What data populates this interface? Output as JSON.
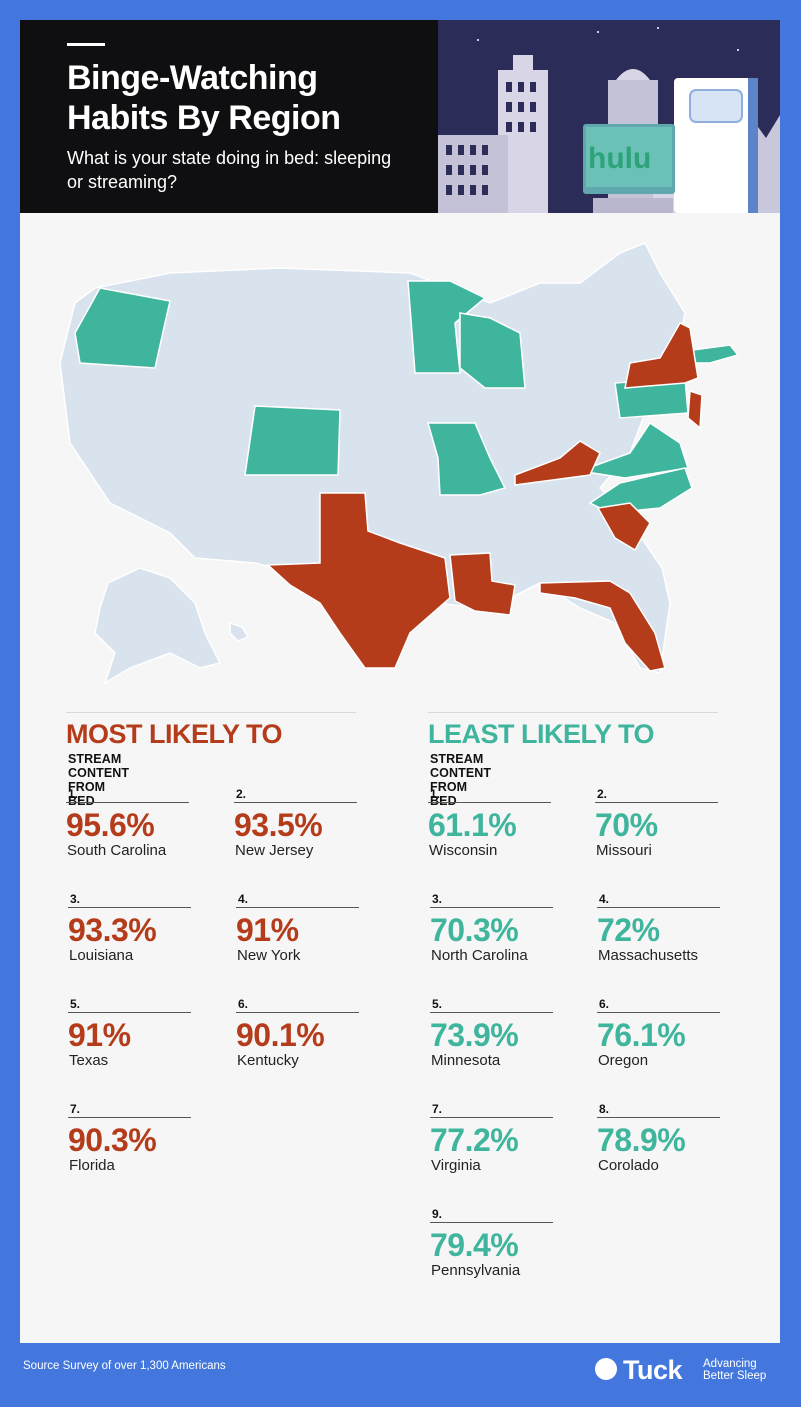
{
  "header": {
    "title": "Binge-Watching Habits By Region",
    "subtitle": "What is your state doing in bed: sleeping or streaming?",
    "tv_logo": "hulu"
  },
  "colors": {
    "background": "#4377dd",
    "most_likely": "#b53c1b",
    "least_likely": "#3eb59c",
    "neutral_state": "#d8e3ee"
  },
  "map": {
    "most_likely_states": [
      "South Carolina",
      "New Jersey",
      "Louisiana",
      "New York",
      "Texas",
      "Kentucky",
      "Florida"
    ],
    "least_likely_states": [
      "Wisconsin",
      "Missouri",
      "North Carolina",
      "Massachusetts",
      "Minnesota",
      "Oregon",
      "Virginia",
      "Corolado",
      "Pennsylvania"
    ]
  },
  "most": {
    "title": "MOST LIKELY TO",
    "subtitle": "STREAM CONTENT FROM BED",
    "items": [
      {
        "rank": "1.",
        "pct": "95.6%",
        "state": "South Carolina"
      },
      {
        "rank": "2.",
        "pct": "93.5%",
        "state": "New Jersey"
      },
      {
        "rank": "3.",
        "pct": "93.3%",
        "state": "Louisiana"
      },
      {
        "rank": "4.",
        "pct": "91%",
        "state": "New York"
      },
      {
        "rank": "5.",
        "pct": "91%",
        "state": "Texas"
      },
      {
        "rank": "6.",
        "pct": "90.1%",
        "state": "Kentucky"
      },
      {
        "rank": "7.",
        "pct": "90.3%",
        "state": "Florida"
      }
    ]
  },
  "least": {
    "title": "LEAST LIKELY TO",
    "subtitle": "STREAM CONTENT FROM BED",
    "items": [
      {
        "rank": "1.",
        "pct": "61.1%",
        "state": "Wisconsin"
      },
      {
        "rank": "2.",
        "pct": "70%",
        "state": "Missouri"
      },
      {
        "rank": "3.",
        "pct": "70.3%",
        "state": "North Carolina"
      },
      {
        "rank": "4.",
        "pct": "72%",
        "state": "Massachusetts"
      },
      {
        "rank": "5.",
        "pct": "73.9%",
        "state": "Minnesota"
      },
      {
        "rank": "6.",
        "pct": "76.1%",
        "state": "Oregon"
      },
      {
        "rank": "7.",
        "pct": "77.2%",
        "state": "Virginia"
      },
      {
        "rank": "8.",
        "pct": "78.9%",
        "state": "Corolado"
      },
      {
        "rank": "9.",
        "pct": "79.4%",
        "state": "Pennsylvania"
      }
    ]
  },
  "footer": {
    "source": "Source Survey of over 1,300 Americans",
    "brand": "Tuck",
    "tagline_1": "Advancing",
    "tagline_2": "Better Sleep"
  }
}
